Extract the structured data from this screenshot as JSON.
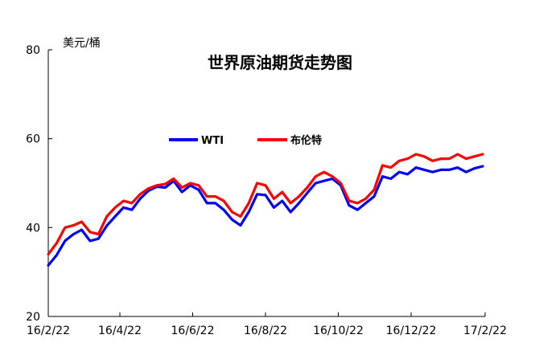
{
  "chart_data": {
    "type": "line",
    "title": "世界原油期货走势图",
    "ylabel": "美元/桶",
    "xlabel": "",
    "ylim": [
      20,
      80
    ],
    "yticks": [
      20,
      40,
      60,
      80
    ],
    "xlim": [
      "16/2/22",
      "17/2/22"
    ],
    "xticks": [
      "16/2/22",
      "16/4/22",
      "16/6/22",
      "16/8/22",
      "16/10/22",
      "16/12/22",
      "17/2/22"
    ],
    "grid": false,
    "legend_position": "top-center",
    "series": [
      {
        "name": "WTI",
        "color": "#0000ff",
        "points": [
          [
            "2016-02-22",
            31.5
          ],
          [
            "2016-02-29",
            33.8
          ],
          [
            "2016-03-07",
            37.0
          ],
          [
            "2016-03-14",
            38.5
          ],
          [
            "2016-03-21",
            39.5
          ],
          [
            "2016-03-28",
            37.0
          ],
          [
            "2016-04-04",
            37.5
          ],
          [
            "2016-04-11",
            40.4
          ],
          [
            "2016-04-18",
            42.5
          ],
          [
            "2016-04-25",
            44.5
          ],
          [
            "2016-05-02",
            44.0
          ],
          [
            "2016-05-09",
            46.5
          ],
          [
            "2016-05-16",
            48.3
          ],
          [
            "2016-05-23",
            49.2
          ],
          [
            "2016-05-30",
            49.0
          ],
          [
            "2016-06-06",
            50.5
          ],
          [
            "2016-06-13",
            48.0
          ],
          [
            "2016-06-20",
            49.5
          ],
          [
            "2016-06-27",
            48.5
          ],
          [
            "2016-07-04",
            45.5
          ],
          [
            "2016-07-11",
            45.5
          ],
          [
            "2016-07-18",
            44.0
          ],
          [
            "2016-07-25",
            41.8
          ],
          [
            "2016-08-01",
            40.5
          ],
          [
            "2016-08-08",
            43.5
          ],
          [
            "2016-08-15",
            47.5
          ],
          [
            "2016-08-22",
            47.3
          ],
          [
            "2016-08-29",
            44.5
          ],
          [
            "2016-09-05",
            46.0
          ],
          [
            "2016-09-12",
            43.5
          ],
          [
            "2016-09-19",
            45.5
          ],
          [
            "2016-09-26",
            47.8
          ],
          [
            "2016-10-03",
            50.0
          ],
          [
            "2016-10-10",
            50.5
          ],
          [
            "2016-10-17",
            51.0
          ],
          [
            "2016-10-24",
            49.5
          ],
          [
            "2016-10-31",
            45.0
          ],
          [
            "2016-11-07",
            44.0
          ],
          [
            "2016-11-14",
            45.5
          ],
          [
            "2016-11-21",
            47.0
          ],
          [
            "2016-11-28",
            51.5
          ],
          [
            "2016-12-05",
            51.0
          ],
          [
            "2016-12-12",
            52.5
          ],
          [
            "2016-12-19",
            52.0
          ],
          [
            "2016-12-26",
            53.5
          ],
          [
            "2017-01-02",
            53.0
          ],
          [
            "2017-01-09",
            52.5
          ],
          [
            "2017-01-16",
            53.0
          ],
          [
            "2017-01-23",
            53.0
          ],
          [
            "2017-01-30",
            53.5
          ],
          [
            "2017-02-06",
            52.5
          ],
          [
            "2017-02-13",
            53.3
          ],
          [
            "2017-02-20",
            53.8
          ]
        ]
      },
      {
        "name": "布伦特",
        "color": "#ff0000",
        "points": [
          [
            "2016-02-22",
            34.0
          ],
          [
            "2016-02-29",
            36.5
          ],
          [
            "2016-03-07",
            40.0
          ],
          [
            "2016-03-14",
            40.5
          ],
          [
            "2016-03-21",
            41.3
          ],
          [
            "2016-03-28",
            39.0
          ],
          [
            "2016-04-04",
            38.5
          ],
          [
            "2016-04-11",
            42.5
          ],
          [
            "2016-04-18",
            44.5
          ],
          [
            "2016-04-25",
            46.0
          ],
          [
            "2016-05-02",
            45.5
          ],
          [
            "2016-05-09",
            47.5
          ],
          [
            "2016-05-16",
            48.8
          ],
          [
            "2016-05-23",
            49.5
          ],
          [
            "2016-05-30",
            49.8
          ],
          [
            "2016-06-06",
            51.0
          ],
          [
            "2016-06-13",
            49.0
          ],
          [
            "2016-06-20",
            50.0
          ],
          [
            "2016-06-27",
            49.5
          ],
          [
            "2016-07-04",
            47.0
          ],
          [
            "2016-07-11",
            47.0
          ],
          [
            "2016-07-18",
            46.0
          ],
          [
            "2016-07-25",
            43.5
          ],
          [
            "2016-08-01",
            42.5
          ],
          [
            "2016-08-08",
            45.5
          ],
          [
            "2016-08-15",
            50.0
          ],
          [
            "2016-08-22",
            49.5
          ],
          [
            "2016-08-29",
            46.5
          ],
          [
            "2016-09-05",
            48.0
          ],
          [
            "2016-09-12",
            45.5
          ],
          [
            "2016-09-19",
            47.0
          ],
          [
            "2016-09-26",
            49.0
          ],
          [
            "2016-10-03",
            51.5
          ],
          [
            "2016-10-10",
            52.5
          ],
          [
            "2016-10-17",
            51.5
          ],
          [
            "2016-10-24",
            50.0
          ],
          [
            "2016-10-31",
            46.0
          ],
          [
            "2016-11-07",
            45.5
          ],
          [
            "2016-11-14",
            46.5
          ],
          [
            "2016-11-21",
            48.5
          ],
          [
            "2016-11-28",
            54.0
          ],
          [
            "2016-12-05",
            53.5
          ],
          [
            "2016-12-12",
            55.0
          ],
          [
            "2016-12-19",
            55.5
          ],
          [
            "2016-12-26",
            56.5
          ],
          [
            "2017-01-02",
            56.0
          ],
          [
            "2017-01-09",
            55.0
          ],
          [
            "2017-01-16",
            55.5
          ],
          [
            "2017-01-23",
            55.5
          ],
          [
            "2017-01-30",
            56.5
          ],
          [
            "2017-02-06",
            55.5
          ],
          [
            "2017-02-13",
            56.0
          ],
          [
            "2017-02-20",
            56.5
          ]
        ]
      }
    ]
  }
}
